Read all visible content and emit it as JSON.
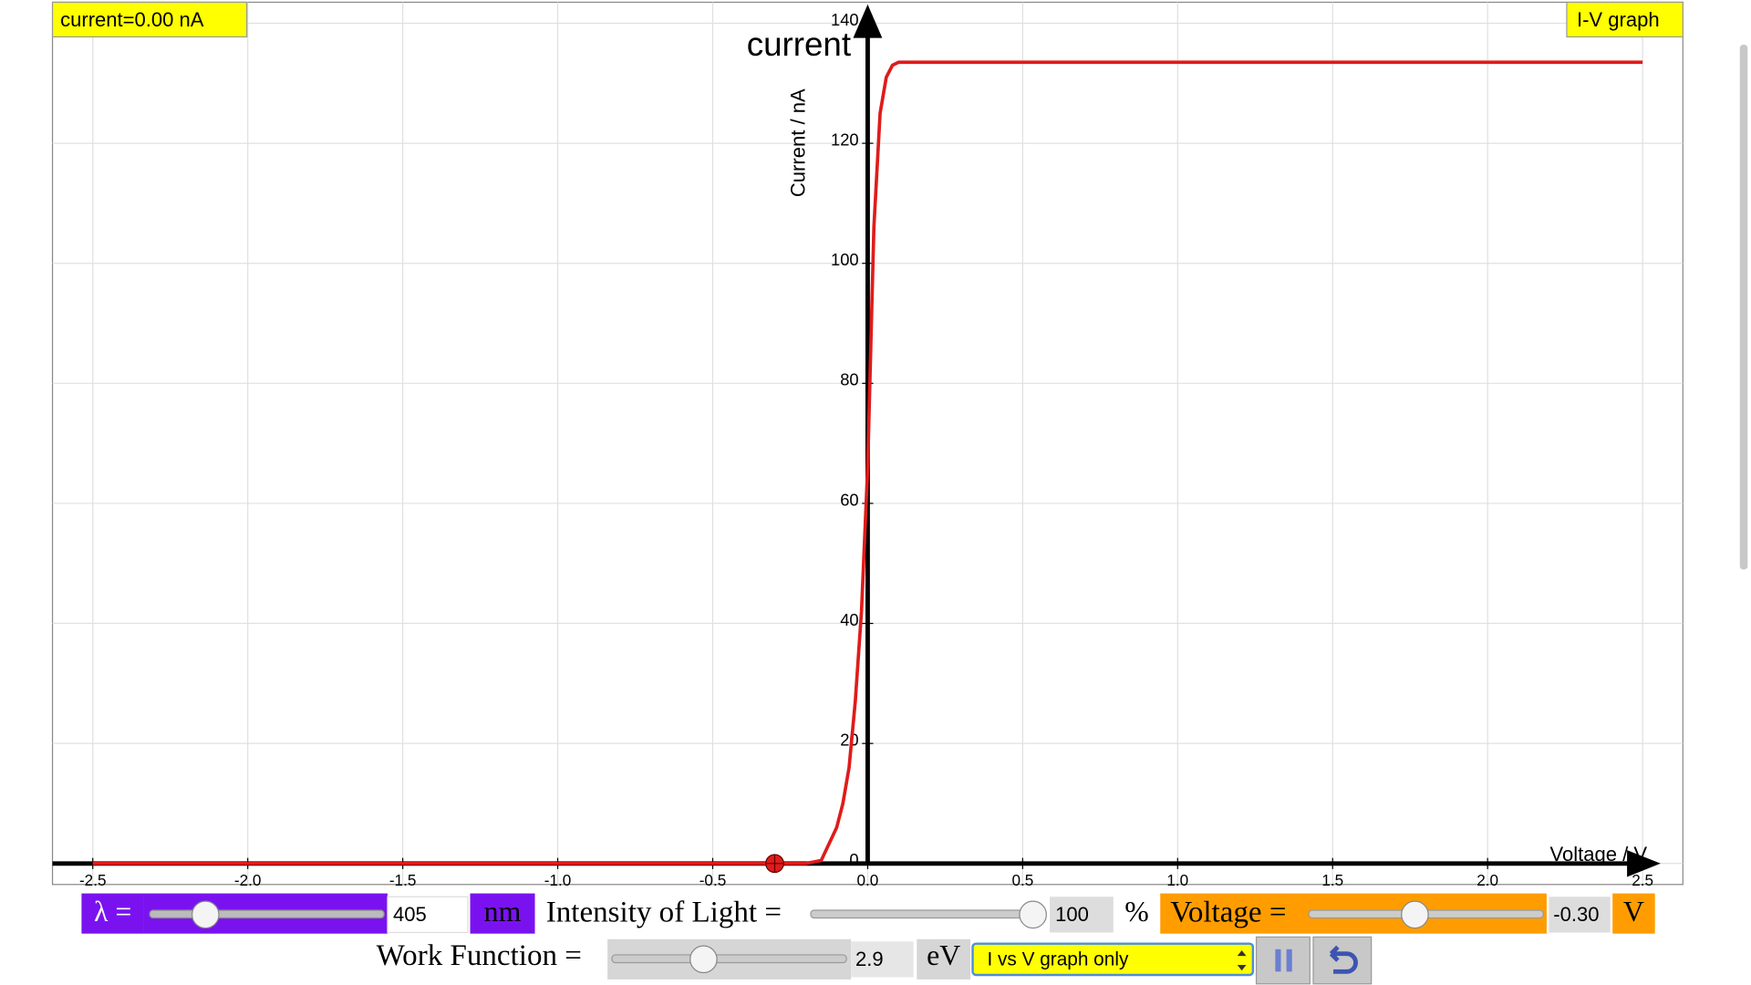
{
  "chart_data": {
    "type": "line",
    "annotations": [
      "current"
    ],
    "xlabel": "Voltage / V",
    "ylabel": "Current / nA",
    "readout": "current=0.00 nA",
    "mode_label": "I-V graph",
    "x": [
      -2.5,
      -0.2,
      -0.15,
      -0.1,
      -0.08,
      -0.06,
      -0.04,
      -0.02,
      0,
      0.02,
      0.04,
      0.06,
      0.08,
      0.1,
      2.5
    ],
    "values": [
      0,
      0,
      0.5,
      6,
      10,
      16,
      27,
      42,
      66,
      106,
      125,
      131,
      133,
      133.5,
      133.5
    ],
    "color": "#e01b1b",
    "marker": {
      "x": -0.3,
      "y": 0,
      "color": "#e01b1b"
    },
    "xlim": [
      -2.63,
      2.63
    ],
    "ylim": [
      -3.5,
      143.5
    ],
    "xticks": [
      -2.5,
      {
        "value": -2,
        "label": "-2.0"
      },
      -1.5,
      {
        "value": -1,
        "label": "-1.0"
      },
      -0.5,
      {
        "value": 0,
        "label": "0.0"
      },
      0.5,
      {
        "value": 1,
        "label": "1.0"
      },
      1.5,
      {
        "value": 2,
        "label": "2.0"
      },
      2.5
    ],
    "yticks": [
      0,
      20,
      40,
      60,
      80,
      100,
      120,
      140
    ],
    "grid": true
  },
  "controls": {
    "wavelength": {
      "label": "λ =",
      "value": "405",
      "unit": "nm"
    },
    "intensity": {
      "label": "Intensity of Light =",
      "value": "100",
      "unit": "%"
    },
    "voltage": {
      "label": "Voltage =",
      "value": "-0.30",
      "unit": "V"
    },
    "work_function": {
      "label": "Work Function =",
      "value": "2.9",
      "unit": "eV"
    },
    "mode": "I vs V graph only"
  }
}
